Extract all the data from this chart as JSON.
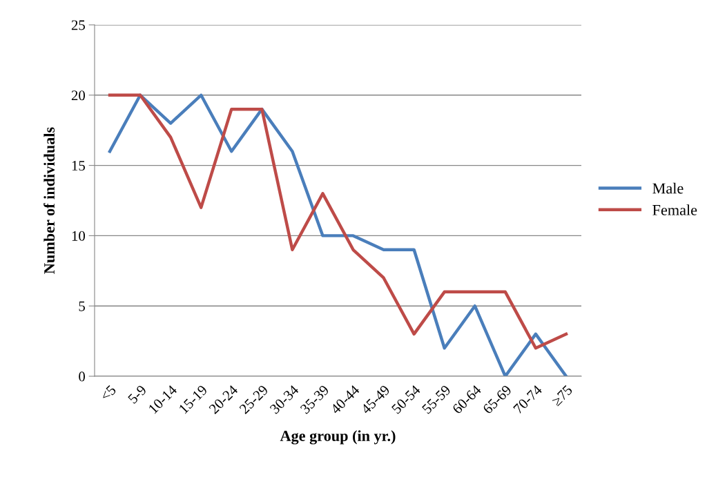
{
  "chart_data": {
    "type": "line",
    "xlabel": "Age group (in yr.)",
    "ylabel": "Number of individuals",
    "categories": [
      "<5",
      "5-9",
      "10-14",
      "15-19",
      "20-24",
      "25-29",
      "30-34",
      "35-39",
      "40-44",
      "45-49",
      "50-54",
      "55-59",
      "60-64",
      "65-69",
      "70-74",
      "≥75"
    ],
    "series": [
      {
        "name": "Male",
        "color": "#4a7ebb",
        "values": [
          16,
          20,
          18,
          20,
          16,
          19,
          16,
          10,
          10,
          9,
          9,
          2,
          5,
          0,
          3,
          0
        ]
      },
      {
        "name": "Female",
        "color": "#be4b48",
        "values": [
          20,
          20,
          17,
          12,
          19,
          19,
          9,
          13,
          9,
          7,
          3,
          6,
          6,
          6,
          2,
          3
        ]
      }
    ],
    "ylim": [
      0,
      25
    ],
    "yticks": [
      0,
      5,
      10,
      15,
      20,
      25
    ],
    "grid": "y",
    "legend": "right",
    "marker": "none",
    "line_style": "solid"
  }
}
